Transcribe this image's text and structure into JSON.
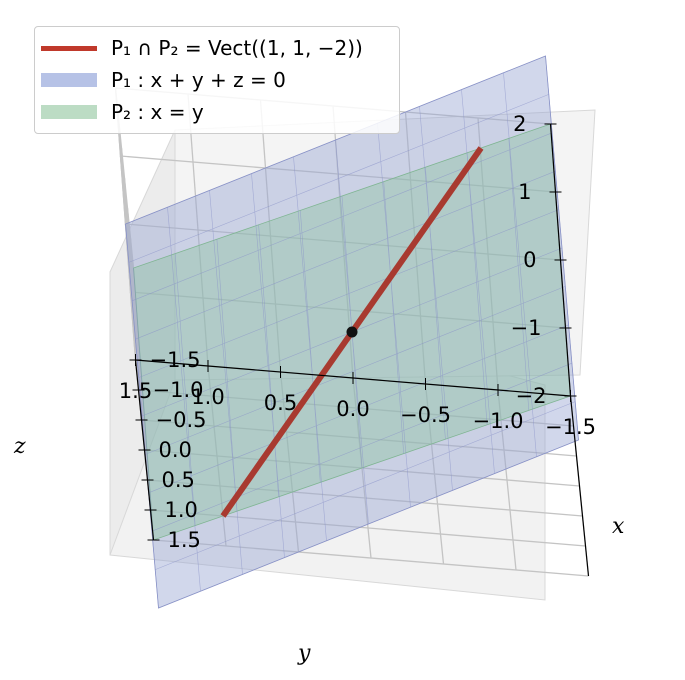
{
  "chart_data": {
    "type": "3d-surface-line",
    "legend": {
      "placement": "top-left",
      "items": [
        {
          "key": "line",
          "label": "P₁ ∩ P₂ = Vect((1, 1, −2))",
          "color": "#c0392b"
        },
        {
          "key": "plane1",
          "label": "P₁ : x + y + z = 0",
          "color": "#b6c2e6"
        },
        {
          "key": "plane2",
          "label": "P₂ : x = y",
          "color": "#bcdcc4"
        }
      ]
    },
    "series": [
      {
        "name": "P₁ ∩ P₂ = Vect((1, 1, −2))",
        "kind": "line",
        "direction": [
          1,
          1,
          -2
        ],
        "t_range": [
          -1,
          1
        ]
      },
      {
        "name": "P₁ : x + y + z = 0",
        "kind": "plane",
        "equation": "x + y + z = 0"
      },
      {
        "name": "P₂ : x = y",
        "kind": "plane",
        "equation": "x = y"
      }
    ],
    "origin_point": [
      0,
      0,
      0
    ],
    "axes": {
      "x": {
        "label": "x",
        "ticks": [
          "−1.5",
          "−1.0",
          "−0.5",
          "0.0",
          "0.5",
          "1.0",
          "1.5"
        ],
        "range": [
          -1.5,
          1.5
        ]
      },
      "y": {
        "label": "y",
        "ticks": [
          "−1.5",
          "−1.0",
          "−0.5",
          "0.0",
          "0.5",
          "1.0",
          "1.5"
        ],
        "range": [
          -1.5,
          1.5
        ]
      },
      "z": {
        "label": "z",
        "ticks": [
          "−2",
          "−1",
          "0",
          "1",
          "2"
        ],
        "range": [
          -2,
          2
        ]
      }
    },
    "grid": true
  }
}
